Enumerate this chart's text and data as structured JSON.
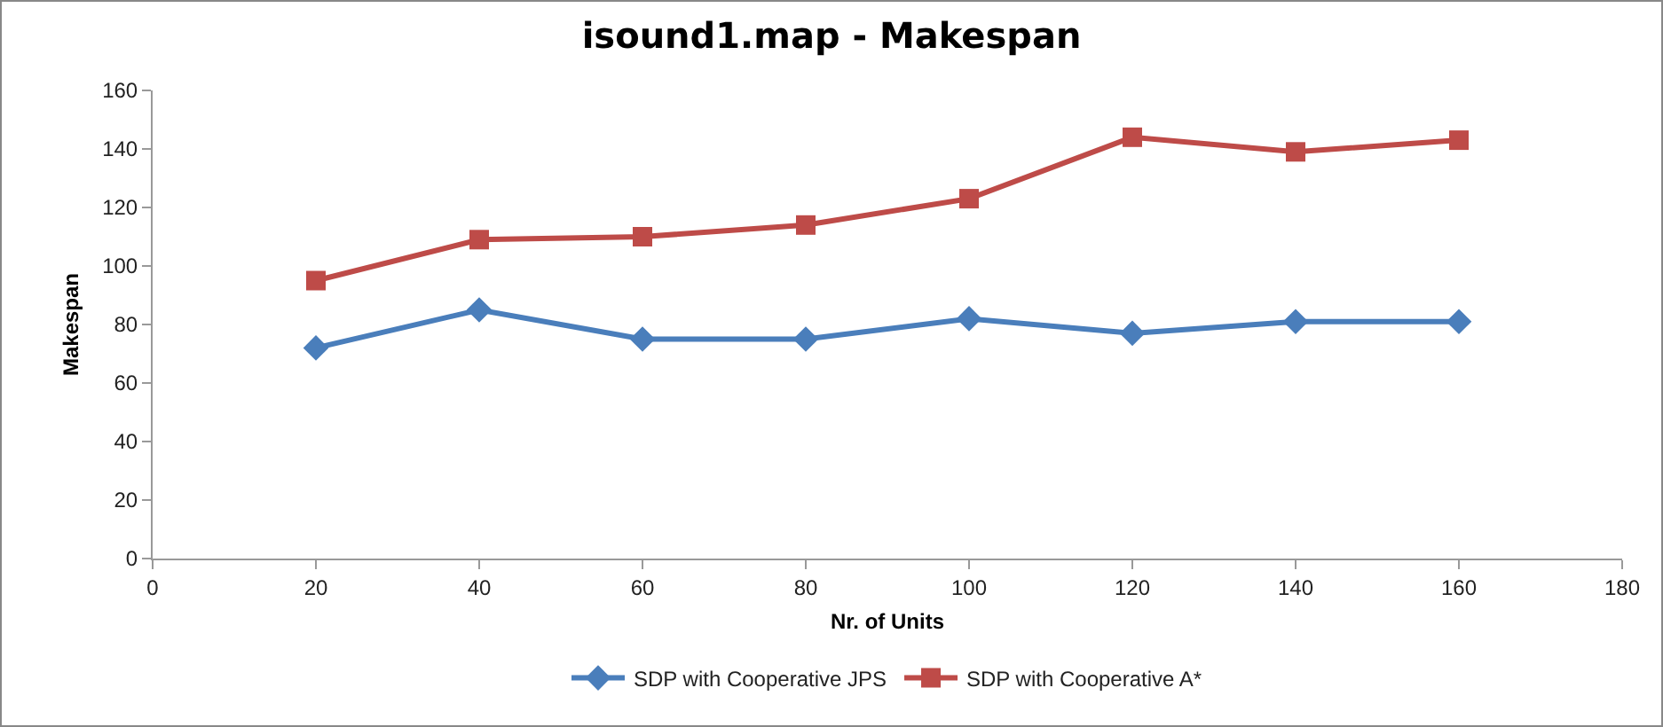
{
  "chart_data": {
    "type": "line",
    "title": "isound1.map - Makespan",
    "xlabel": "Nr. of Units",
    "ylabel": "Makespan",
    "x": [
      20,
      40,
      60,
      80,
      100,
      120,
      140,
      160
    ],
    "series": [
      {
        "name": "SDP with Cooperative JPS",
        "color": "#4a7ebb",
        "marker": "diamond",
        "values": [
          72,
          85,
          75,
          75,
          82,
          77,
          81,
          81
        ]
      },
      {
        "name": "SDP with Cooperative A*",
        "color": "#be4b48",
        "marker": "square",
        "values": [
          95,
          109,
          110,
          114,
          123,
          144,
          139,
          143
        ]
      }
    ],
    "xlim": [
      0,
      180
    ],
    "xticks": [
      0,
      20,
      40,
      60,
      80,
      100,
      120,
      140,
      160,
      180
    ],
    "ylim": [
      0,
      160
    ],
    "yticks": [
      0,
      20,
      40,
      60,
      80,
      100,
      120,
      140,
      160
    ],
    "grid": false,
    "legend": "bottom",
    "line_style": "solid"
  }
}
